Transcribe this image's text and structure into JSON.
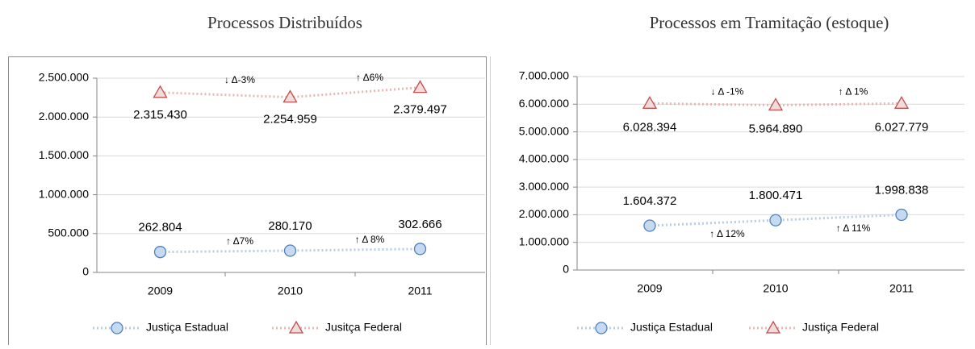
{
  "chart_data": [
    {
      "type": "line",
      "title": "Processos Distribuídos",
      "categories": [
        "2009",
        "2010",
        "2011"
      ],
      "ylim": [
        0,
        2500000
      ],
      "yticks": [
        0,
        {
          "value": 500000,
          "label": "500.000"
        },
        {
          "value": 1000000,
          "label": "1.000.000"
        },
        {
          "value": 1500000,
          "label": "1.500.000"
        },
        {
          "value": 2000000,
          "label": "2.000.000"
        },
        {
          "value": 2500000,
          "label": "2.500.000"
        }
      ],
      "series": [
        {
          "name": "Justiça Estadual",
          "color": "#4f81bd",
          "marker": "circle",
          "values": [
            262804,
            280170,
            302666
          ],
          "value_labels": [
            "262.804",
            "280.170",
            "302.666"
          ],
          "changes": [
            "↑ Δ7%",
            "↑ Δ 8%"
          ]
        },
        {
          "name": "Jusitça Federal",
          "color": "#c0504d",
          "marker": "triangle",
          "values": [
            2315430,
            2254959,
            2379497
          ],
          "value_labels": [
            "2.315.430",
            "2.254.959",
            "2.379.497"
          ],
          "changes": [
            "↓ Δ-3%",
            "↑ Δ6%"
          ]
        }
      ]
    },
    {
      "type": "line",
      "title": "Processos em Tramitação (estoque)",
      "categories": [
        "2009",
        "2010",
        "2011"
      ],
      "ylim": [
        0,
        7000000
      ],
      "yticks": [
        0,
        {
          "value": 1000000,
          "label": "1.000.000"
        },
        {
          "value": 2000000,
          "label": "2.000.000"
        },
        {
          "value": 3000000,
          "label": "3.000.000"
        },
        {
          "value": 4000000,
          "label": "4.000.000"
        },
        {
          "value": 5000000,
          "label": "5.000.000"
        },
        {
          "value": 6000000,
          "label": "6.000.000"
        },
        {
          "value": 7000000,
          "label": "7.000.000"
        }
      ],
      "series": [
        {
          "name": "Justiça Estadual",
          "color": "#4f81bd",
          "marker": "circle",
          "values": [
            1604372,
            1800471,
            1998838
          ],
          "value_labels": [
            "1.604.372",
            "1.800.471",
            "1.998.838"
          ],
          "changes": [
            "↑ Δ 12%",
            "↑ Δ 11%"
          ]
        },
        {
          "name": "Justiça Federal",
          "color": "#c0504d",
          "marker": "triangle",
          "values": [
            6028394,
            5964890,
            6027779
          ],
          "value_labels": [
            "6.028.394",
            "5.964.890",
            "6.027.779"
          ],
          "changes": [
            "↓ Δ -1%",
            "↑ Δ 1%"
          ]
        }
      ]
    }
  ]
}
